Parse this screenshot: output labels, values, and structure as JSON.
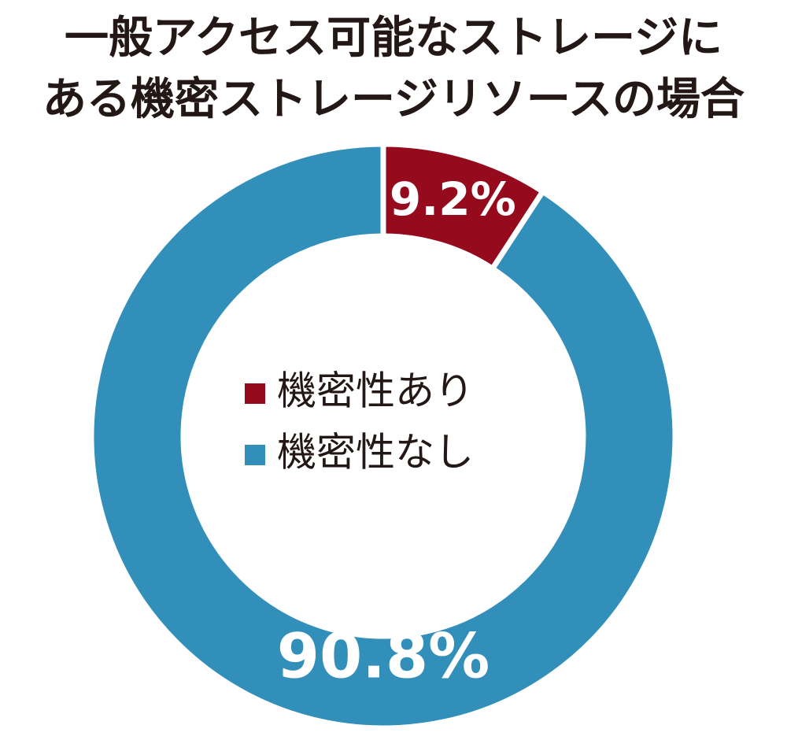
{
  "chart_data": {
    "type": "donut",
    "title": [
      "一般アクセス可能なストレージに",
      "ある機密ストレージリソースの場合"
    ],
    "categories": [
      "機密性あり",
      "機密性なし"
    ],
    "values": [
      9.2,
      90.8
    ],
    "value_labels": [
      "9.2%",
      "90.8%"
    ],
    "colors": [
      "#960a1e",
      "#318fb9"
    ]
  }
}
